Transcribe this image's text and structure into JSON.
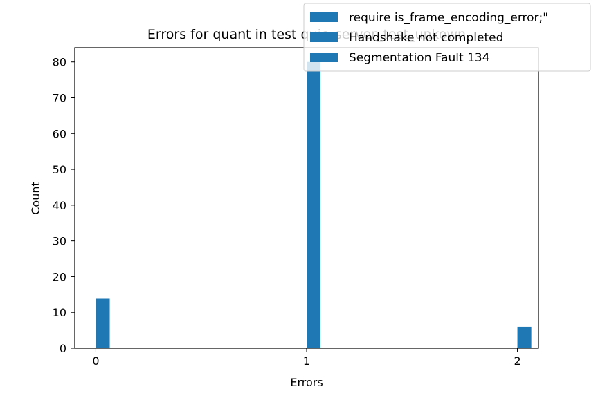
{
  "chart_data": {
    "type": "bar",
    "title": "Errors for quant in test quic_server_test_unkown",
    "xlabel": "Errors",
    "ylabel": "Count",
    "xlim": [
      -0.1,
      2.1
    ],
    "ylim": [
      0,
      84
    ],
    "x_ticks": [
      "0",
      "1",
      "2"
    ],
    "y_ticks": [
      "0",
      "10",
      "20",
      "30",
      "40",
      "50",
      "60",
      "70",
      "80"
    ],
    "grid": false,
    "legend_position": "top-right",
    "bar_color": "#1f77b4",
    "series": [
      {
        "name": "require is_frame_encoding_error;\"",
        "x": [
          0,
          1,
          2
        ],
        "values": [
          14,
          0,
          0
        ]
      },
      {
        "name": "Handshake not completed",
        "x": [
          0,
          1,
          2
        ],
        "values": [
          0,
          80,
          0
        ]
      },
      {
        "name": "Segmentation Fault 134",
        "x": [
          0,
          1,
          2
        ],
        "values": [
          0,
          0,
          6
        ]
      }
    ]
  }
}
